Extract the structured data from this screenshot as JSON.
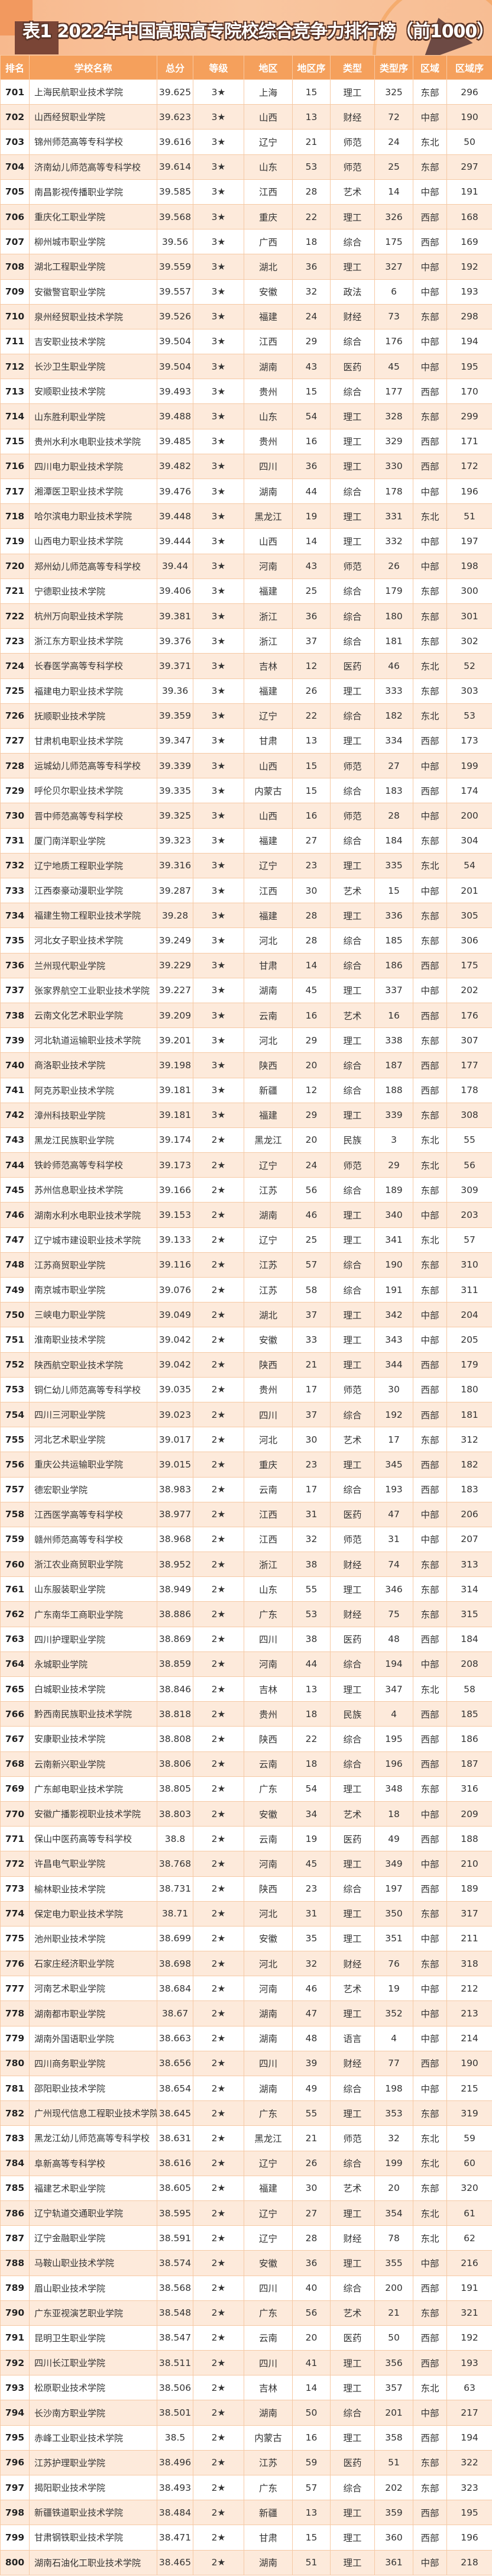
{
  "title": "表1  2022年中国高职高专院校综合竞争力排行榜（前1000）",
  "colors": {
    "header_bg": "#f5a05c",
    "even_row_bg": "#fdeadb",
    "border": "#f6c9a4"
  },
  "columns": [
    "排名",
    "学校名称",
    "总分",
    "等级",
    "地区",
    "地区序",
    "类型",
    "类型序",
    "区域",
    "区域序"
  ],
  "rows": [
    [
      "701",
      "上海民航职业技术学院",
      "39.625",
      "3★",
      "上海",
      "15",
      "理工",
      "325",
      "东部",
      "296"
    ],
    [
      "702",
      "山西经贸职业学院",
      "39.623",
      "3★",
      "山西",
      "13",
      "财经",
      "72",
      "中部",
      "190"
    ],
    [
      "703",
      "锦州师范高等专科学校",
      "39.616",
      "3★",
      "辽宁",
      "21",
      "师范",
      "24",
      "东北",
      "50"
    ],
    [
      "704",
      "济南幼儿师范高等专科学校",
      "39.614",
      "3★",
      "山东",
      "53",
      "师范",
      "25",
      "东部",
      "297"
    ],
    [
      "705",
      "南昌影视传播职业学院",
      "39.585",
      "3★",
      "江西",
      "28",
      "艺术",
      "14",
      "中部",
      "191"
    ],
    [
      "706",
      "重庆化工职业学院",
      "39.568",
      "3★",
      "重庆",
      "22",
      "理工",
      "326",
      "西部",
      "168"
    ],
    [
      "707",
      "柳州城市职业学院",
      "39.56",
      "3★",
      "广西",
      "18",
      "综合",
      "175",
      "西部",
      "169"
    ],
    [
      "708",
      "湖北工程职业学院",
      "39.559",
      "3★",
      "湖北",
      "36",
      "理工",
      "327",
      "中部",
      "192"
    ],
    [
      "709",
      "安徽警官职业学院",
      "39.557",
      "3★",
      "安徽",
      "32",
      "政法",
      "6",
      "中部",
      "193"
    ],
    [
      "710",
      "泉州经贸职业技术学院",
      "39.526",
      "3★",
      "福建",
      "24",
      "财经",
      "73",
      "东部",
      "298"
    ],
    [
      "711",
      "吉安职业技术学院",
      "39.504",
      "3★",
      "江西",
      "29",
      "综合",
      "176",
      "中部",
      "194"
    ],
    [
      "712",
      "长沙卫生职业学院",
      "39.504",
      "3★",
      "湖南",
      "43",
      "医药",
      "45",
      "中部",
      "195"
    ],
    [
      "713",
      "安顺职业技术学院",
      "39.493",
      "3★",
      "贵州",
      "15",
      "综合",
      "177",
      "西部",
      "170"
    ],
    [
      "714",
      "山东胜利职业学院",
      "39.488",
      "3★",
      "山东",
      "54",
      "理工",
      "328",
      "东部",
      "299"
    ],
    [
      "715",
      "贵州水利水电职业技术学院",
      "39.485",
      "3★",
      "贵州",
      "16",
      "理工",
      "329",
      "西部",
      "171"
    ],
    [
      "716",
      "四川电力职业技术学院",
      "39.482",
      "3★",
      "四川",
      "36",
      "理工",
      "330",
      "西部",
      "172"
    ],
    [
      "717",
      "湘潭医卫职业技术学院",
      "39.476",
      "3★",
      "湖南",
      "44",
      "综合",
      "178",
      "中部",
      "196"
    ],
    [
      "718",
      "哈尔滨电力职业技术学院",
      "39.448",
      "3★",
      "黑龙江",
      "19",
      "理工",
      "331",
      "东北",
      "51"
    ],
    [
      "719",
      "山西电力职业技术学院",
      "39.444",
      "3★",
      "山西",
      "14",
      "理工",
      "332",
      "中部",
      "197"
    ],
    [
      "720",
      "郑州幼儿师范高等专科学校",
      "39.44",
      "3★",
      "河南",
      "43",
      "师范",
      "26",
      "中部",
      "198"
    ],
    [
      "721",
      "宁德职业技术学院",
      "39.406",
      "3★",
      "福建",
      "25",
      "综合",
      "179",
      "东部",
      "300"
    ],
    [
      "722",
      "杭州万向职业技术学院",
      "39.381",
      "3★",
      "浙江",
      "36",
      "综合",
      "180",
      "东部",
      "301"
    ],
    [
      "723",
      "浙江东方职业技术学院",
      "39.376",
      "3★",
      "浙江",
      "37",
      "综合",
      "181",
      "东部",
      "302"
    ],
    [
      "724",
      "长春医学高等专科学校",
      "39.371",
      "3★",
      "吉林",
      "12",
      "医药",
      "46",
      "东北",
      "52"
    ],
    [
      "725",
      "福建电力职业技术学院",
      "39.36",
      "3★",
      "福建",
      "26",
      "理工",
      "333",
      "东部",
      "303"
    ],
    [
      "726",
      "抚顺职业技术学院",
      "39.359",
      "3★",
      "辽宁",
      "22",
      "综合",
      "182",
      "东北",
      "53"
    ],
    [
      "727",
      "甘肃机电职业技术学院",
      "39.347",
      "3★",
      "甘肃",
      "13",
      "理工",
      "334",
      "西部",
      "173"
    ],
    [
      "728",
      "运城幼儿师范高等专科学校",
      "39.339",
      "3★",
      "山西",
      "15",
      "师范",
      "27",
      "中部",
      "199"
    ],
    [
      "729",
      "呼伦贝尔职业技术学院",
      "39.335",
      "3★",
      "内蒙古",
      "15",
      "综合",
      "183",
      "西部",
      "174"
    ],
    [
      "730",
      "晋中师范高等专科学校",
      "39.325",
      "3★",
      "山西",
      "16",
      "师范",
      "28",
      "中部",
      "200"
    ],
    [
      "731",
      "厦门南洋职业学院",
      "39.323",
      "3★",
      "福建",
      "27",
      "综合",
      "184",
      "东部",
      "304"
    ],
    [
      "732",
      "辽宁地质工程职业学院",
      "39.316",
      "3★",
      "辽宁",
      "23",
      "理工",
      "335",
      "东北",
      "54"
    ],
    [
      "733",
      "江西泰豪动漫职业学院",
      "39.287",
      "3★",
      "江西",
      "30",
      "艺术",
      "15",
      "中部",
      "201"
    ],
    [
      "734",
      "福建生物工程职业技术学院",
      "39.28",
      "3★",
      "福建",
      "28",
      "理工",
      "336",
      "东部",
      "305"
    ],
    [
      "735",
      "河北女子职业技术学院",
      "39.249",
      "3★",
      "河北",
      "28",
      "综合",
      "185",
      "东部",
      "306"
    ],
    [
      "736",
      "兰州现代职业学院",
      "39.229",
      "3★",
      "甘肃",
      "14",
      "综合",
      "186",
      "西部",
      "175"
    ],
    [
      "737",
      "张家界航空工业职业技术学院",
      "39.227",
      "3★",
      "湖南",
      "45",
      "理工",
      "337",
      "中部",
      "202"
    ],
    [
      "738",
      "云南文化艺术职业学院",
      "39.209",
      "3★",
      "云南",
      "16",
      "艺术",
      "16",
      "西部",
      "176"
    ],
    [
      "739",
      "河北轨道运输职业技术学院",
      "39.201",
      "3★",
      "河北",
      "29",
      "理工",
      "338",
      "东部",
      "307"
    ],
    [
      "740",
      "商洛职业技术学院",
      "39.198",
      "3★",
      "陕西",
      "20",
      "综合",
      "187",
      "西部",
      "177"
    ],
    [
      "741",
      "阿克苏职业技术学院",
      "39.181",
      "3★",
      "新疆",
      "12",
      "综合",
      "188",
      "西部",
      "178"
    ],
    [
      "742",
      "漳州科技职业学院",
      "39.181",
      "3★",
      "福建",
      "29",
      "理工",
      "339",
      "东部",
      "308"
    ],
    [
      "743",
      "黑龙江民族职业学院",
      "39.174",
      "2★",
      "黑龙江",
      "20",
      "民族",
      "3",
      "东北",
      "55"
    ],
    [
      "744",
      "铁岭师范高等专科学校",
      "39.173",
      "2★",
      "辽宁",
      "24",
      "师范",
      "29",
      "东北",
      "56"
    ],
    [
      "745",
      "苏州信息职业技术学院",
      "39.166",
      "2★",
      "江苏",
      "56",
      "综合",
      "189",
      "东部",
      "309"
    ],
    [
      "746",
      "湖南水利水电职业技术学院",
      "39.153",
      "2★",
      "湖南",
      "46",
      "理工",
      "340",
      "中部",
      "203"
    ],
    [
      "747",
      "辽宁城市建设职业技术学院",
      "39.133",
      "2★",
      "辽宁",
      "25",
      "理工",
      "341",
      "东北",
      "57"
    ],
    [
      "748",
      "江苏商贸职业学院",
      "39.116",
      "2★",
      "江苏",
      "57",
      "综合",
      "190",
      "东部",
      "310"
    ],
    [
      "749",
      "南京城市职业学院",
      "39.076",
      "2★",
      "江苏",
      "58",
      "综合",
      "191",
      "东部",
      "311"
    ],
    [
      "750",
      "三峡电力职业学院",
      "39.049",
      "2★",
      "湖北",
      "37",
      "理工",
      "342",
      "中部",
      "204"
    ],
    [
      "751",
      "淮南职业技术学院",
      "39.042",
      "2★",
      "安徽",
      "33",
      "理工",
      "343",
      "中部",
      "205"
    ],
    [
      "752",
      "陕西航空职业技术学院",
      "39.042",
      "2★",
      "陕西",
      "21",
      "理工",
      "344",
      "西部",
      "179"
    ],
    [
      "753",
      "铜仁幼儿师范高等专科学校",
      "39.035",
      "2★",
      "贵州",
      "17",
      "师范",
      "30",
      "西部",
      "180"
    ],
    [
      "754",
      "四川三河职业学院",
      "39.023",
      "2★",
      "四川",
      "37",
      "综合",
      "192",
      "西部",
      "181"
    ],
    [
      "755",
      "河北艺术职业学院",
      "39.017",
      "2★",
      "河北",
      "30",
      "艺术",
      "17",
      "东部",
      "312"
    ],
    [
      "756",
      "重庆公共运输职业学院",
      "39.015",
      "2★",
      "重庆",
      "23",
      "理工",
      "345",
      "西部",
      "182"
    ],
    [
      "757",
      "德宏职业学院",
      "38.983",
      "2★",
      "云南",
      "17",
      "综合",
      "193",
      "西部",
      "183"
    ],
    [
      "758",
      "江西医学高等专科学校",
      "38.977",
      "2★",
      "江西",
      "31",
      "医药",
      "47",
      "中部",
      "206"
    ],
    [
      "759",
      "赣州师范高等专科学校",
      "38.968",
      "2★",
      "江西",
      "32",
      "师范",
      "31",
      "中部",
      "207"
    ],
    [
      "760",
      "浙江农业商贸职业学院",
      "38.952",
      "2★",
      "浙江",
      "38",
      "财经",
      "74",
      "东部",
      "313"
    ],
    [
      "761",
      "山东服装职业学院",
      "38.949",
      "2★",
      "山东",
      "55",
      "理工",
      "346",
      "东部",
      "314"
    ],
    [
      "762",
      "广东南华工商职业学院",
      "38.886",
      "2★",
      "广东",
      "53",
      "财经",
      "75",
      "东部",
      "315"
    ],
    [
      "763",
      "四川护理职业学院",
      "38.869",
      "2★",
      "四川",
      "38",
      "医药",
      "48",
      "西部",
      "184"
    ],
    [
      "764",
      "永城职业学院",
      "38.859",
      "2★",
      "河南",
      "44",
      "综合",
      "194",
      "中部",
      "208"
    ],
    [
      "765",
      "白城职业技术学院",
      "38.846",
      "2★",
      "吉林",
      "13",
      "理工",
      "347",
      "东北",
      "58"
    ],
    [
      "766",
      "黔西南民族职业技术学院",
      "38.818",
      "2★",
      "贵州",
      "18",
      "民族",
      "4",
      "西部",
      "185"
    ],
    [
      "767",
      "安康职业技术学院",
      "38.808",
      "2★",
      "陕西",
      "22",
      "综合",
      "195",
      "西部",
      "186"
    ],
    [
      "768",
      "云南新兴职业学院",
      "38.806",
      "2★",
      "云南",
      "18",
      "综合",
      "196",
      "西部",
      "187"
    ],
    [
      "769",
      "广东邮电职业技术学院",
      "38.805",
      "2★",
      "广东",
      "54",
      "理工",
      "348",
      "东部",
      "316"
    ],
    [
      "770",
      "安徽广播影视职业技术学院",
      "38.803",
      "2★",
      "安徽",
      "34",
      "艺术",
      "18",
      "中部",
      "209"
    ],
    [
      "771",
      "保山中医药高等专科学校",
      "38.8",
      "2★",
      "云南",
      "19",
      "医药",
      "49",
      "西部",
      "188"
    ],
    [
      "772",
      "许昌电气职业学院",
      "38.768",
      "2★",
      "河南",
      "45",
      "理工",
      "349",
      "中部",
      "210"
    ],
    [
      "773",
      "榆林职业技术学院",
      "38.731",
      "2★",
      "陕西",
      "23",
      "综合",
      "197",
      "西部",
      "189"
    ],
    [
      "774",
      "保定电力职业技术学院",
      "38.71",
      "2★",
      "河北",
      "31",
      "理工",
      "350",
      "东部",
      "317"
    ],
    [
      "775",
      "池州职业技术学院",
      "38.699",
      "2★",
      "安徽",
      "35",
      "理工",
      "351",
      "中部",
      "211"
    ],
    [
      "776",
      "石家庄经济职业学院",
      "38.698",
      "2★",
      "河北",
      "32",
      "财经",
      "76",
      "东部",
      "318"
    ],
    [
      "777",
      "河南艺术职业学院",
      "38.684",
      "2★",
      "河南",
      "46",
      "艺术",
      "19",
      "中部",
      "212"
    ],
    [
      "778",
      "湖南都市职业学院",
      "38.67",
      "2★",
      "湖南",
      "47",
      "理工",
      "352",
      "中部",
      "213"
    ],
    [
      "779",
      "湖南外国语职业学院",
      "38.663",
      "2★",
      "湖南",
      "48",
      "语言",
      "4",
      "中部",
      "214"
    ],
    [
      "780",
      "四川商务职业学院",
      "38.656",
      "2★",
      "四川",
      "39",
      "财经",
      "77",
      "西部",
      "190"
    ],
    [
      "781",
      "邵阳职业技术学院",
      "38.654",
      "2★",
      "湖南",
      "49",
      "综合",
      "198",
      "中部",
      "215"
    ],
    [
      "782",
      "广州现代信息工程职业技术学院",
      "38.645",
      "2★",
      "广东",
      "55",
      "理工",
      "353",
      "东部",
      "319"
    ],
    [
      "783",
      "黑龙江幼儿师范高等专科学校",
      "38.631",
      "2★",
      "黑龙江",
      "21",
      "师范",
      "32",
      "东北",
      "59"
    ],
    [
      "784",
      "阜新高等专科学校",
      "38.616",
      "2★",
      "辽宁",
      "26",
      "综合",
      "199",
      "东北",
      "60"
    ],
    [
      "785",
      "福建艺术职业学院",
      "38.605",
      "2★",
      "福建",
      "30",
      "艺术",
      "20",
      "东部",
      "320"
    ],
    [
      "786",
      "辽宁轨道交通职业学院",
      "38.595",
      "2★",
      "辽宁",
      "27",
      "理工",
      "354",
      "东北",
      "61"
    ],
    [
      "787",
      "辽宁金融职业学院",
      "38.591",
      "2★",
      "辽宁",
      "28",
      "财经",
      "78",
      "东北",
      "62"
    ],
    [
      "788",
      "马鞍山职业技术学院",
      "38.574",
      "2★",
      "安徽",
      "36",
      "理工",
      "355",
      "中部",
      "216"
    ],
    [
      "789",
      "眉山职业技术学院",
      "38.568",
      "2★",
      "四川",
      "40",
      "综合",
      "200",
      "西部",
      "191"
    ],
    [
      "790",
      "广东亚视演艺职业学院",
      "38.548",
      "2★",
      "广东",
      "56",
      "艺术",
      "21",
      "东部",
      "321"
    ],
    [
      "791",
      "昆明卫生职业学院",
      "38.547",
      "2★",
      "云南",
      "20",
      "医药",
      "50",
      "西部",
      "192"
    ],
    [
      "792",
      "四川长江职业学院",
      "38.511",
      "2★",
      "四川",
      "41",
      "理工",
      "356",
      "西部",
      "193"
    ],
    [
      "793",
      "松原职业技术学院",
      "38.506",
      "2★",
      "吉林",
      "14",
      "理工",
      "357",
      "东北",
      "63"
    ],
    [
      "794",
      "长沙南方职业学院",
      "38.501",
      "2★",
      "湖南",
      "50",
      "综合",
      "201",
      "中部",
      "217"
    ],
    [
      "795",
      "赤峰工业职业技术学院",
      "38.5",
      "2★",
      "内蒙古",
      "16",
      "理工",
      "358",
      "西部",
      "194"
    ],
    [
      "796",
      "江苏护理职业学院",
      "38.496",
      "2★",
      "江苏",
      "59",
      "医药",
      "51",
      "东部",
      "322"
    ],
    [
      "797",
      "揭阳职业技术学院",
      "38.493",
      "2★",
      "广东",
      "57",
      "综合",
      "202",
      "东部",
      "323"
    ],
    [
      "798",
      "新疆铁道职业技术学院",
      "38.484",
      "2★",
      "新疆",
      "13",
      "理工",
      "359",
      "西部",
      "195"
    ],
    [
      "799",
      "甘肃钢铁职业技术学院",
      "38.471",
      "2★",
      "甘肃",
      "15",
      "理工",
      "360",
      "西部",
      "196"
    ],
    [
      "800",
      "湖南石油化工职业技术学院",
      "38.465",
      "2★",
      "湖南",
      "51",
      "理工",
      "361",
      "中部",
      "218"
    ]
  ]
}
